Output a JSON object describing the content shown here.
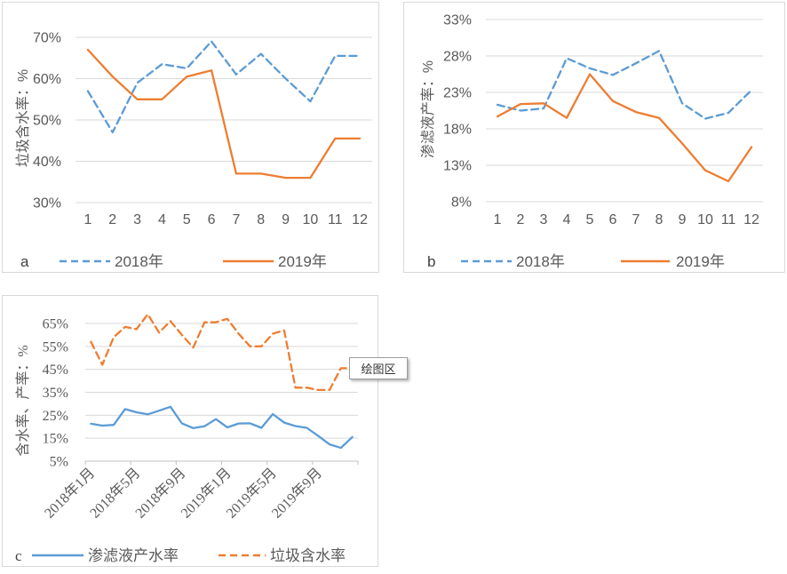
{
  "colors": {
    "series_2018_blue": "#5B9BD5",
    "series_2019_orange": "#ED7D31",
    "gridline": "#D9D9D9",
    "axis_line": "#BFBFBF",
    "axis_text": "#595959",
    "panel_border": "#D9D9D9",
    "tooltip_border": "#9D9D9D",
    "tooltip_text": "#333333"
  },
  "tooltip": {
    "label": "绘图区"
  },
  "chart_data": [
    {
      "id": "a",
      "type": "line",
      "panel_letter": "a",
      "title": "",
      "xlabel": "",
      "ylabel": "垃圾含水率：%",
      "ylim": [
        30,
        70
      ],
      "y_tick_labels": [
        "70%",
        "60%",
        "50%",
        "40%",
        "30%"
      ],
      "grid": true,
      "legend_position": "bottom",
      "categories": [
        "1",
        "2",
        "3",
        "4",
        "5",
        "6",
        "7",
        "8",
        "9",
        "10",
        "11",
        "12"
      ],
      "series": [
        {
          "name": "2018年",
          "style": "dashed",
          "color_key": "series_2018_blue",
          "values": [
            57,
            47,
            59,
            63.5,
            62.5,
            69,
            61,
            66,
            60,
            54.5,
            65.5,
            65.5
          ]
        },
        {
          "name": "2019年",
          "style": "solid",
          "color_key": "series_2019_orange",
          "values": [
            67,
            60.5,
            55,
            55,
            60.5,
            62,
            37,
            37,
            36,
            36,
            45.5,
            45.5
          ]
        }
      ]
    },
    {
      "id": "b",
      "type": "line",
      "panel_letter": "b",
      "title": "",
      "xlabel": "",
      "ylabel": "渗滤液产率：%",
      "ylim": [
        8,
        33
      ],
      "y_tick_labels": [
        "33%",
        "28%",
        "23%",
        "18%",
        "13%",
        "8%"
      ],
      "grid": true,
      "legend_position": "bottom",
      "categories": [
        "1",
        "2",
        "3",
        "4",
        "5",
        "6",
        "7",
        "8",
        "9",
        "10",
        "11",
        "12"
      ],
      "series": [
        {
          "name": "2018年",
          "style": "dashed",
          "color_key": "series_2018_blue",
          "values": [
            21.3,
            20.5,
            20.8,
            27.7,
            26.3,
            25.4,
            27,
            28.7,
            21.5,
            19.4,
            20.2,
            23.3
          ]
        },
        {
          "name": "2019年",
          "style": "solid",
          "color_key": "series_2019_orange",
          "values": [
            19.7,
            21.4,
            21.5,
            19.5,
            25.5,
            21.8,
            20.3,
            19.5,
            16,
            12.3,
            10.8,
            15.5
          ]
        }
      ]
    },
    {
      "id": "c",
      "type": "line",
      "panel_letter": "c",
      "title": "",
      "xlabel": "",
      "ylabel": "含水率、产率：%",
      "ylim": [
        5,
        65
      ],
      "y_tick_labels": [
        "65%",
        "55%",
        "45%",
        "35%",
        "25%",
        "15%",
        "5%"
      ],
      "grid": true,
      "legend_position": "bottom",
      "x_tick_labels_shown": [
        "2018年1月",
        "2018年5月",
        "2018年9月",
        "2019年1月",
        "2019年5月",
        "2019年9月"
      ],
      "x_tick_label_every": 4,
      "categories": [
        "2018年1月",
        "2018年2月",
        "2018年3月",
        "2018年4月",
        "2018年5月",
        "2018年6月",
        "2018年7月",
        "2018年8月",
        "2018年9月",
        "2018年10月",
        "2018年11月",
        "2018年12月",
        "2019年1月",
        "2019年2月",
        "2019年3月",
        "2019年4月",
        "2019年5月",
        "2019年6月",
        "2019年7月",
        "2019年8月",
        "2019年9月",
        "2019年10月",
        "2019年11月",
        "2019年12月"
      ],
      "series": [
        {
          "name": "渗滤液产水率",
          "style": "solid",
          "color_key": "series_2018_blue",
          "values": [
            21.3,
            20.5,
            20.8,
            27.7,
            26.3,
            25.4,
            27,
            28.7,
            21.5,
            19.4,
            20.2,
            23.3,
            19.7,
            21.4,
            21.5,
            19.5,
            25.5,
            21.8,
            20.3,
            19.5,
            16,
            12.3,
            10.8,
            15.5
          ]
        },
        {
          "name": "垃圾含水率",
          "style": "dashed",
          "color_key": "series_2019_orange",
          "values": [
            57,
            47,
            59,
            63.5,
            62.5,
            69,
            61,
            66,
            60,
            54.5,
            65.5,
            65.5,
            67,
            60.5,
            55,
            55,
            60.5,
            62,
            37,
            37,
            36,
            36,
            45.5,
            45.5
          ]
        }
      ]
    }
  ]
}
